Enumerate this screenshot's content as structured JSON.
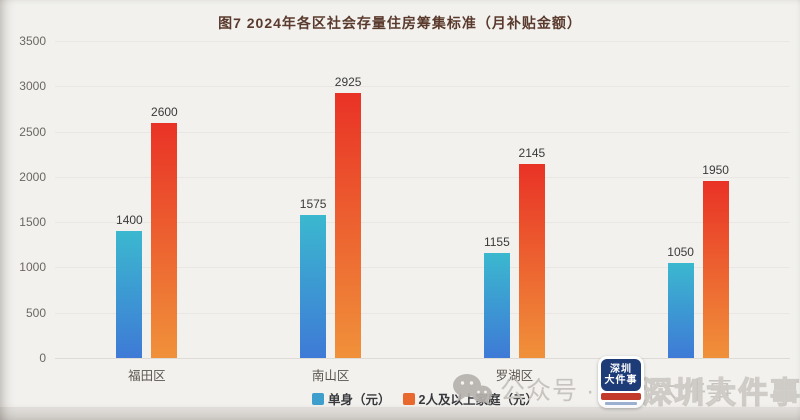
{
  "title": "图7 2024年各区社会存量住房筹集标准（月补贴金额）",
  "chart_data": {
    "type": "bar",
    "categories": [
      "福田区",
      "南山区",
      "罗湖区",
      ""
    ],
    "series": [
      {
        "name": "单身（元）",
        "values": [
          1400,
          1575,
          1155,
          1050
        ],
        "color_top": "#3bb8cf",
        "color_bottom": "#3e7ad6",
        "legend_color": "#3f9fcc"
      },
      {
        "name": "2人及以上家庭（元）",
        "values": [
          2600,
          2925,
          2145,
          1950
        ],
        "color_top": "#e93226",
        "color_bottom": "#f0913a",
        "legend_color": "#e9682e"
      }
    ],
    "ylim": [
      0,
      3500
    ],
    "y_ticks": [
      0,
      500,
      1000,
      1500,
      2000,
      2500,
      3000,
      3500
    ],
    "grid": true,
    "legend_position": "bottom"
  },
  "watermark": {
    "wechat_text": "公众号 · 深圳大件事",
    "overlay_text": "深圳大件事",
    "logo": {
      "line1": "深圳",
      "line2": "大件事"
    }
  }
}
